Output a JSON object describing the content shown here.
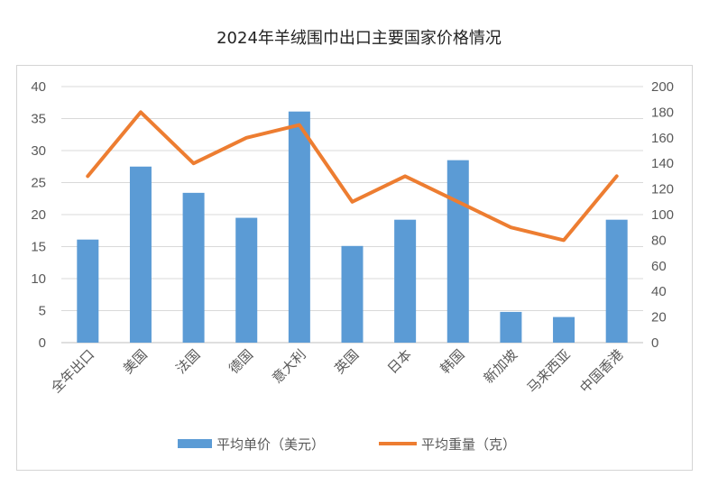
{
  "chart_data": {
    "type": "bar+line",
    "title": "2024年羊绒围巾出口主要国家价格情况",
    "categories": [
      "全年出口",
      "美国",
      "法国",
      "德国",
      "意大利",
      "英国",
      "日本",
      "韩国",
      "新加坡",
      "马来西亚",
      "中国香港"
    ],
    "series": [
      {
        "name": "平均单价（美元）",
        "type": "bar",
        "axis": "left",
        "color": "#5b9bd5",
        "values": [
          16.1,
          27.5,
          23.4,
          19.5,
          36.1,
          15.1,
          19.2,
          28.5,
          4.8,
          4.0,
          19.2
        ]
      },
      {
        "name": "平均重量（克）",
        "type": "line",
        "axis": "right",
        "color": "#ed7d31",
        "values": [
          130,
          180,
          140,
          160,
          170,
          110,
          130,
          110,
          90,
          80,
          130
        ]
      }
    ],
    "y_left": {
      "min": 0,
      "max": 40,
      "step": 5,
      "ticks": [
        "0",
        "5",
        "10",
        "15",
        "20",
        "25",
        "30",
        "35",
        "40"
      ]
    },
    "y_right": {
      "min": 0,
      "max": 200,
      "step": 20,
      "ticks": [
        "0",
        "20",
        "40",
        "60",
        "80",
        "100",
        "120",
        "140",
        "160",
        "180",
        "200"
      ]
    },
    "grid": true,
    "legend_position": "bottom"
  }
}
